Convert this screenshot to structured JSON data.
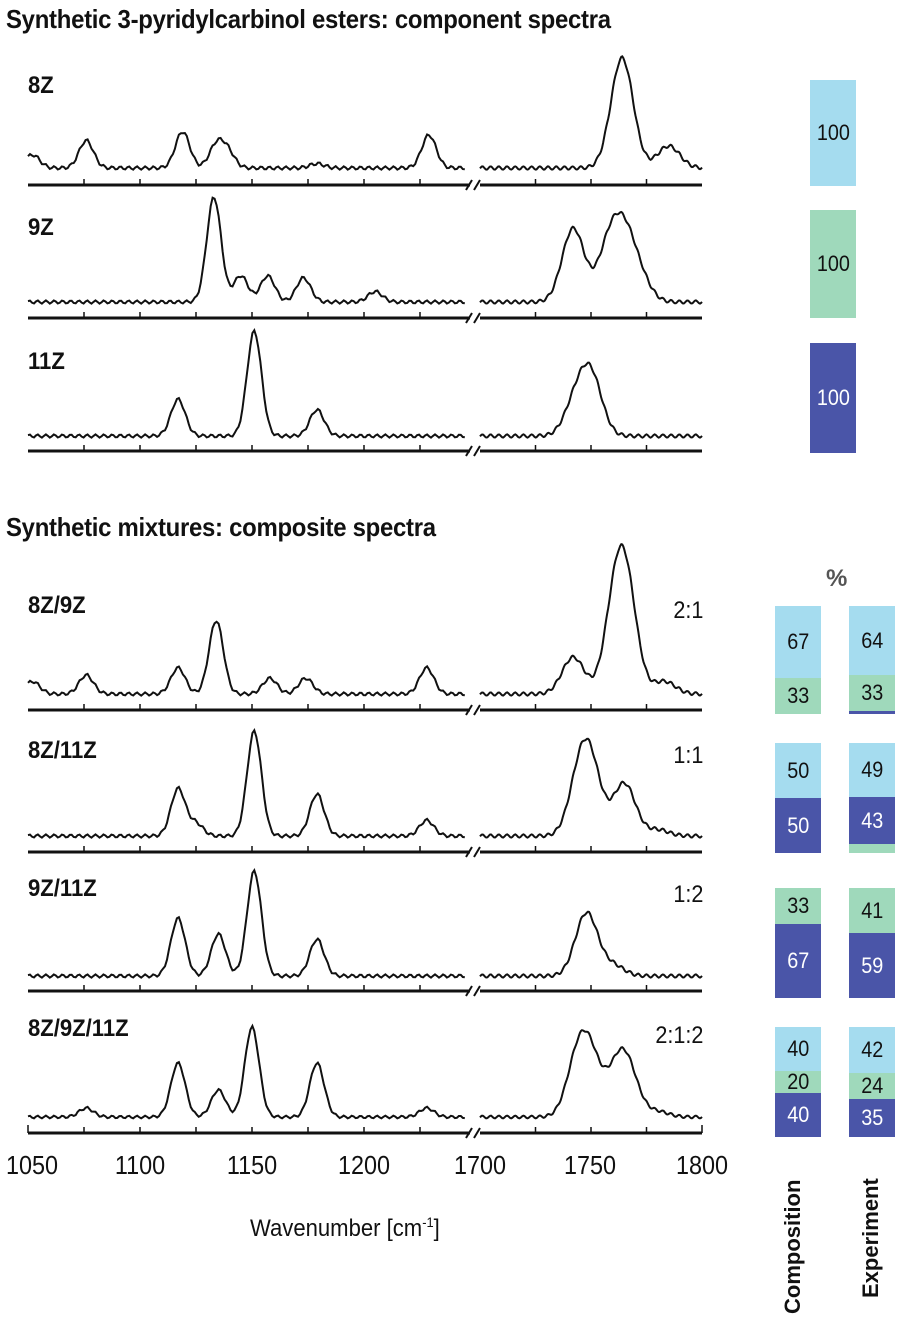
{
  "titles": {
    "components": "Synthetic 3-pyridylcarbinol esters: component spectra",
    "mixtures": "Synthetic mixtures: composite spectra"
  },
  "colors": {
    "8Z": "#a5dcef",
    "9Z": "#9fd9bb",
    "11Z": "#4a55a8",
    "line": "#111111"
  },
  "axis": {
    "xlabel": "Wavenumber [cm",
    "xlabel_sup": "-1",
    "xlabel_end": "]",
    "tick_labels": [
      "1050",
      "1100",
      "1150",
      "1200",
      "1700",
      "1750",
      "1800"
    ],
    "percent_label": "%",
    "composition_label": "Composition",
    "experiment_label": "Experiment"
  },
  "panels": [
    {
      "label": "8Z",
      "ratio": "",
      "composition": [
        {
          "iso": "8Z",
          "v": "100"
        }
      ],
      "experiment": []
    },
    {
      "label": "9Z",
      "ratio": "",
      "composition": [
        {
          "iso": "9Z",
          "v": "100"
        }
      ],
      "experiment": []
    },
    {
      "label": "11Z",
      "ratio": "",
      "composition": [
        {
          "iso": "11Z",
          "v": "100"
        }
      ],
      "experiment": []
    },
    {
      "label": "8Z/9Z",
      "ratio": "2:1",
      "composition": [
        {
          "iso": "8Z",
          "v": "67"
        },
        {
          "iso": "9Z",
          "v": "33"
        }
      ],
      "experiment": [
        {
          "iso": "8Z",
          "v": "64"
        },
        {
          "iso": "9Z",
          "v": "33"
        },
        {
          "iso": "11Z",
          "v": "3"
        }
      ]
    },
    {
      "label": "8Z/11Z",
      "ratio": "1:1",
      "composition": [
        {
          "iso": "8Z",
          "v": "50"
        },
        {
          "iso": "11Z",
          "v": "50"
        }
      ],
      "experiment": [
        {
          "iso": "8Z",
          "v": "49"
        },
        {
          "iso": "11Z",
          "v": "43"
        },
        {
          "iso": "9Z",
          "v": "8"
        }
      ]
    },
    {
      "label": "9Z/11Z",
      "ratio": "1:2",
      "composition": [
        {
          "iso": "9Z",
          "v": "33"
        },
        {
          "iso": "11Z",
          "v": "67"
        }
      ],
      "experiment": [
        {
          "iso": "9Z",
          "v": "41"
        },
        {
          "iso": "11Z",
          "v": "59"
        }
      ]
    },
    {
      "label": "8Z/9Z/11Z",
      "ratio": "2:1:2",
      "composition": [
        {
          "iso": "8Z",
          "v": "40"
        },
        {
          "iso": "9Z",
          "v": "20"
        },
        {
          "iso": "11Z",
          "v": "40"
        }
      ],
      "experiment": [
        {
          "iso": "8Z",
          "v": "42"
        },
        {
          "iso": "9Z",
          "v": "24"
        },
        {
          "iso": "11Z",
          "v": "35"
        }
      ]
    }
  ],
  "chart_data": {
    "type": "line",
    "title": "Synthetic 3-pyridylcarbinol esters: component spectra / Synthetic mixtures: composite spectra",
    "xlabel": "Wavenumber [cm-1]",
    "ylabel": "",
    "x_ranges": [
      [
        1050,
        1245
      ],
      [
        1700,
        1800
      ]
    ],
    "xticks": [
      1050,
      1100,
      1150,
      1200,
      1700,
      1750,
      1800
    ],
    "grid": false,
    "series": [
      {
        "name": "8Z",
        "peaks": [
          [
            1052,
            0.12
          ],
          [
            1076,
            0.25
          ],
          [
            1119,
            0.33
          ],
          [
            1134,
            0.2
          ],
          [
            1139,
            0.15
          ],
          [
            1179,
            0.04
          ],
          [
            1229,
            0.3
          ],
          [
            1764,
            1.0
          ],
          [
            1785,
            0.2
          ]
        ]
      },
      {
        "name": "9Z",
        "peaks": [
          [
            1133,
            1.0
          ],
          [
            1145,
            0.25
          ],
          [
            1157,
            0.25
          ],
          [
            1173,
            0.23
          ],
          [
            1205,
            0.1
          ],
          [
            1742,
            0.7
          ],
          [
            1758,
            0.5
          ],
          [
            1765,
            0.55
          ],
          [
            1772,
            0.2
          ]
        ]
      },
      {
        "name": "11Z",
        "peaks": [
          [
            1117,
            0.35
          ],
          [
            1151,
            1.0
          ],
          [
            1179,
            0.25
          ],
          [
            1743,
            0.3
          ],
          [
            1750,
            0.55
          ]
        ]
      },
      {
        "name": "8Z/9Z 2:1",
        "peaks": [
          [
            1052,
            0.12
          ],
          [
            1076,
            0.18
          ],
          [
            1117,
            0.25
          ],
          [
            1134,
            0.7
          ],
          [
            1158,
            0.15
          ],
          [
            1174,
            0.15
          ],
          [
            1228,
            0.25
          ],
          [
            1742,
            0.35
          ],
          [
            1761,
            0.75
          ],
          [
            1766,
            0.85
          ],
          [
            1783,
            0.12
          ]
        ]
      },
      {
        "name": "8Z/11Z 1:1",
        "peaks": [
          [
            1117,
            0.45
          ],
          [
            1125,
            0.12
          ],
          [
            1151,
            1.0
          ],
          [
            1179,
            0.4
          ],
          [
            1228,
            0.15
          ],
          [
            1745,
            0.5
          ],
          [
            1750,
            0.55
          ],
          [
            1765,
            0.5
          ],
          [
            1780,
            0.06
          ]
        ]
      },
      {
        "name": "9Z/11Z 1:2",
        "peaks": [
          [
            1117,
            0.55
          ],
          [
            1135,
            0.4
          ],
          [
            1151,
            1.0
          ],
          [
            1179,
            0.35
          ],
          [
            1748,
            0.6
          ],
          [
            1760,
            0.1
          ]
        ]
      },
      {
        "name": "8Z/9Z/11Z 2:1:2",
        "peaks": [
          [
            1076,
            0.1
          ],
          [
            1117,
            0.6
          ],
          [
            1135,
            0.3
          ],
          [
            1150,
            1.0
          ],
          [
            1179,
            0.6
          ],
          [
            1228,
            0.1
          ],
          [
            1744,
            0.6
          ],
          [
            1750,
            0.55
          ],
          [
            1762,
            0.45
          ],
          [
            1767,
            0.4
          ],
          [
            1780,
            0.06
          ]
        ]
      }
    ],
    "bars": {
      "categories": [
        "8Z",
        "9Z",
        "11Z",
        "8Z/9Z",
        "8Z/11Z",
        "9Z/11Z",
        "8Z/9Z/11Z"
      ],
      "composition": [
        [
          100,
          0,
          0
        ],
        [
          0,
          100,
          0
        ],
        [
          0,
          0,
          100
        ],
        [
          67,
          33,
          0
        ],
        [
          50,
          0,
          50
        ],
        [
          0,
          33,
          67
        ],
        [
          40,
          20,
          40
        ]
      ],
      "experiment": [
        null,
        null,
        null,
        [
          64,
          33,
          3
        ],
        [
          49,
          8,
          43
        ],
        [
          0,
          41,
          59
        ],
        [
          42,
          24,
          35
        ]
      ],
      "order": [
        "8Z",
        "9Z",
        "11Z"
      ]
    }
  }
}
